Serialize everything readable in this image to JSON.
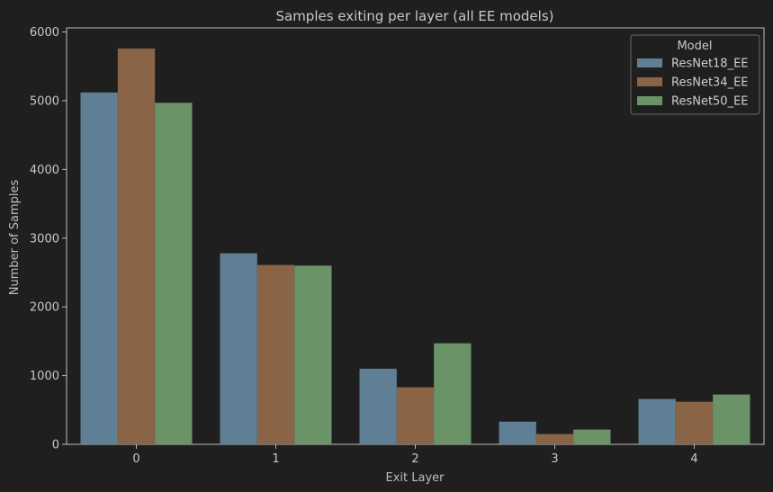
{
  "chart_data": {
    "type": "bar",
    "title": "Samples exiting per layer (all EE models)",
    "xlabel": "Exit Layer",
    "ylabel": "Number of Samples",
    "categories": [
      "0",
      "1",
      "2",
      "3",
      "4"
    ],
    "ylim": [
      0,
      6000
    ],
    "yticks": [
      0,
      1000,
      2000,
      3000,
      4000,
      5000,
      6000
    ],
    "grid": false,
    "legend": {
      "title": "Model",
      "placement": "top-right"
    },
    "series": [
      {
        "name": "ResNet18_EE",
        "color": "#5f8094",
        "values": [
          5120,
          2780,
          1100,
          330,
          660
        ]
      },
      {
        "name": "ResNet34_EE",
        "color": "#8a6446",
        "values": [
          5760,
          2610,
          830,
          150,
          620
        ]
      },
      {
        "name": "ResNet50_EE",
        "color": "#6a9468",
        "values": [
          4970,
          2600,
          1470,
          215,
          725
        ]
      }
    ]
  },
  "colors": {
    "background": "#1f1f1f",
    "axis": "#bcbcbc",
    "text": "#c8c8c8"
  }
}
